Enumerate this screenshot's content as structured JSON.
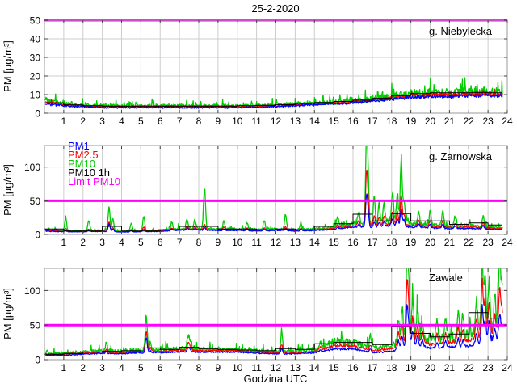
{
  "chart_data": {
    "type": "line",
    "title": "25-2-2020",
    "xlabel": "Godzina UTC",
    "ylabel": "PM [µg/m³]",
    "x_range": [
      0,
      24
    ],
    "x_ticks": [
      1,
      2,
      3,
      4,
      5,
      6,
      7,
      8,
      9,
      10,
      11,
      12,
      13,
      14,
      15,
      16,
      17,
      18,
      19,
      20,
      21,
      22,
      23,
      24
    ],
    "grid": true,
    "legend_position": "top-left-middle-panel",
    "limit_value": 50,
    "legend": [
      {
        "label": "PM1",
        "color": "#0000ff"
      },
      {
        "label": "PM2.5",
        "color": "#ff0000"
      },
      {
        "label": "PM10",
        "color": "#00cc00"
      },
      {
        "label": "PM10 1h",
        "color": "#000000"
      },
      {
        "label": "Limit PM10",
        "color": "#ff00ff"
      }
    ],
    "colors": {
      "pm1": "#0000ff",
      "pm2_5": "#ff0000",
      "pm10": "#00cc00",
      "pm10_1h": "#000000",
      "limit": "#ff00ff",
      "grid": "#cdcdcd",
      "frame": "#999999",
      "tick": "#444444"
    },
    "panels": [
      {
        "name": "g. Niebylecka",
        "ylim": [
          0,
          50
        ],
        "yticks": [
          0,
          10,
          20,
          30,
          40,
          50
        ],
        "hours": [
          0,
          1,
          2,
          3,
          4,
          5,
          6,
          7,
          8,
          9,
          10,
          11,
          12,
          13,
          14,
          15,
          16,
          17,
          18,
          19,
          20,
          21,
          22,
          23,
          24
        ],
        "pm10": [
          7,
          5,
          4.5,
          4,
          4,
          4,
          4,
          4,
          4,
          4,
          4,
          4.2,
          4.5,
          5,
          5.5,
          6,
          6.5,
          7.5,
          9,
          10.5,
          11,
          11,
          11.5,
          11.5,
          11
        ],
        "pm2_5": [
          6,
          4.5,
          4,
          3.5,
          3.5,
          3.5,
          3.5,
          3.5,
          3.5,
          3.5,
          3.5,
          3.7,
          4,
          4.5,
          5,
          5.5,
          6,
          7,
          8.5,
          9.5,
          10,
          10,
          10.5,
          10.5,
          10
        ],
        "pm1": [
          5,
          4,
          3.5,
          3,
          3,
          3,
          3,
          3,
          3,
          3,
          3,
          3.2,
          3.5,
          4,
          4.5,
          5,
          5.5,
          6.5,
          7.5,
          8.5,
          9,
          9,
          9.5,
          9.5,
          9
        ],
        "pm10_1h": [
          5.5,
          4.5,
          4,
          3.8,
          3.8,
          3.8,
          3.8,
          3.8,
          3.8,
          3.8,
          4,
          4.2,
          4.6,
          5.2,
          5.8,
          6.3,
          7,
          8,
          9.5,
          10.5,
          11,
          11,
          11.2,
          11
        ],
        "spikes": []
      },
      {
        "name": "g. Zarnowska",
        "ylim": [
          0,
          132
        ],
        "yticks": [
          0,
          50,
          100
        ],
        "hours": [
          0,
          1,
          2,
          3,
          4,
          5,
          6,
          7,
          8,
          9,
          10,
          11,
          12,
          13,
          14,
          15,
          16,
          17,
          18,
          19,
          20,
          21,
          22,
          23,
          24
        ],
        "pm10": [
          7,
          5,
          5,
          6,
          4.5,
          5,
          6,
          9,
          9,
          8,
          8,
          7,
          8,
          7,
          8,
          11,
          16,
          14,
          20,
          16,
          14,
          12,
          13,
          11,
          9
        ],
        "pm2_5": [
          6,
          4.5,
          4.5,
          5,
          4,
          4.5,
          5,
          7.5,
          7.5,
          7,
          7,
          6,
          7,
          6,
          7,
          9,
          13,
          12,
          16,
          13,
          12,
          10,
          11,
          9.5,
          8
        ],
        "pm1": [
          5,
          4,
          4,
          4.5,
          3.5,
          4,
          4.5,
          6.5,
          6.5,
          6,
          6,
          5,
          6,
          5,
          6,
          7.5,
          11,
          10,
          13.5,
          11,
          10,
          8.5,
          9,
          8,
          7
        ],
        "pm10_1h": [
          8,
          5,
          5,
          12,
          5,
          5,
          7,
          12,
          12,
          8,
          8,
          7,
          8,
          7,
          12,
          16,
          30,
          20,
          31,
          20,
          20,
          15,
          17,
          14
        ],
        "spikes": [
          [
            1.1,
            20,
            4,
            2
          ],
          [
            2.3,
            16,
            3,
            2
          ],
          [
            3.35,
            36,
            14,
            12
          ],
          [
            3.55,
            18,
            6,
            4
          ],
          [
            4.5,
            12,
            3,
            2
          ],
          [
            5.15,
            22,
            6,
            3
          ],
          [
            6.6,
            10,
            3,
            2
          ],
          [
            7.4,
            14,
            5,
            3
          ],
          [
            7.8,
            12,
            4,
            2
          ],
          [
            8.3,
            58,
            8,
            4
          ],
          [
            9.3,
            12,
            4,
            2
          ],
          [
            10.5,
            10,
            3,
            2
          ],
          [
            11.4,
            12,
            3,
            2
          ],
          [
            12.5,
            22,
            5,
            3
          ],
          [
            13.3,
            10,
            3,
            2
          ],
          [
            15.2,
            14,
            5,
            3
          ],
          [
            16.3,
            18,
            8,
            5
          ],
          [
            16.7,
            120,
            75,
            45
          ],
          [
            16.78,
            60,
            30,
            18
          ],
          [
            17.1,
            40,
            15,
            8
          ],
          [
            17.35,
            30,
            12,
            7
          ],
          [
            17.6,
            28,
            12,
            7
          ],
          [
            18.05,
            45,
            18,
            10
          ],
          [
            18.3,
            40,
            18,
            10
          ],
          [
            18.5,
            92,
            45,
            25
          ],
          [
            18.65,
            35,
            15,
            8
          ],
          [
            19.4,
            18,
            8,
            5
          ],
          [
            20.0,
            20,
            8,
            5
          ],
          [
            20.65,
            24,
            10,
            6
          ],
          [
            21.3,
            14,
            6,
            4
          ],
          [
            22.75,
            16,
            8,
            5
          ]
        ]
      },
      {
        "name": "Zawale",
        "ylim": [
          0,
          132
        ],
        "yticks": [
          0,
          50,
          100
        ],
        "hours": [
          0,
          1,
          2,
          3,
          4,
          5,
          6,
          7,
          8,
          9,
          10,
          11,
          12,
          13,
          14,
          15,
          16,
          17,
          18,
          19,
          20,
          21,
          22,
          23,
          24
        ],
        "pm10": [
          9,
          9,
          11,
          13,
          12,
          14,
          14,
          16,
          15,
          15,
          15,
          13,
          12,
          12,
          14,
          26,
          25,
          17,
          20,
          38,
          28,
          32,
          36,
          48,
          58
        ],
        "pm2_5": [
          8,
          8,
          9.5,
          11,
          10,
          12,
          12,
          14,
          13,
          13,
          13,
          11,
          10,
          10,
          12,
          20,
          20,
          13,
          16,
          30,
          22,
          25,
          28,
          38,
          46
        ],
        "pm1": [
          6.5,
          6.5,
          8,
          9,
          8.5,
          10,
          10,
          11.5,
          11,
          11,
          11,
          9.5,
          8.5,
          8.5,
          10,
          15,
          16,
          10,
          12,
          22,
          17,
          18,
          20,
          27,
          33
        ],
        "pm10_1h": [
          8,
          9,
          11,
          12,
          13,
          17,
          15,
          18,
          16,
          15,
          14,
          13,
          16,
          15,
          23,
          25,
          25,
          22,
          48,
          38,
          33,
          37,
          68,
          60
        ],
        "spikes": [
          [
            3.2,
            10,
            4,
            3
          ],
          [
            5.28,
            50,
            28,
            22
          ],
          [
            5.5,
            12,
            5,
            3
          ],
          [
            7.45,
            18,
            10,
            6
          ],
          [
            7.55,
            12,
            6,
            4
          ],
          [
            12.3,
            26,
            12,
            8
          ],
          [
            14.3,
            8,
            4,
            2
          ],
          [
            16.9,
            18,
            8,
            5
          ],
          [
            18.35,
            32,
            20,
            12
          ],
          [
            18.55,
            42,
            26,
            16
          ],
          [
            18.8,
            115,
            85,
            55
          ],
          [
            18.9,
            60,
            40,
            25
          ],
          [
            19.1,
            50,
            32,
            20
          ],
          [
            19.35,
            35,
            22,
            13
          ],
          [
            19.6,
            25,
            15,
            9
          ],
          [
            20.35,
            25,
            14,
            8
          ],
          [
            20.8,
            26,
            15,
            9
          ],
          [
            21.45,
            40,
            22,
            12
          ],
          [
            21.7,
            30,
            16,
            9
          ],
          [
            22.4,
            45,
            28,
            16
          ],
          [
            22.7,
            100,
            80,
            50
          ],
          [
            22.85,
            70,
            50,
            30
          ],
          [
            23.05,
            70,
            45,
            28
          ],
          [
            23.35,
            45,
            25,
            15
          ],
          [
            23.6,
            95,
            60,
            35
          ],
          [
            23.72,
            50,
            30,
            18
          ]
        ]
      }
    ]
  }
}
